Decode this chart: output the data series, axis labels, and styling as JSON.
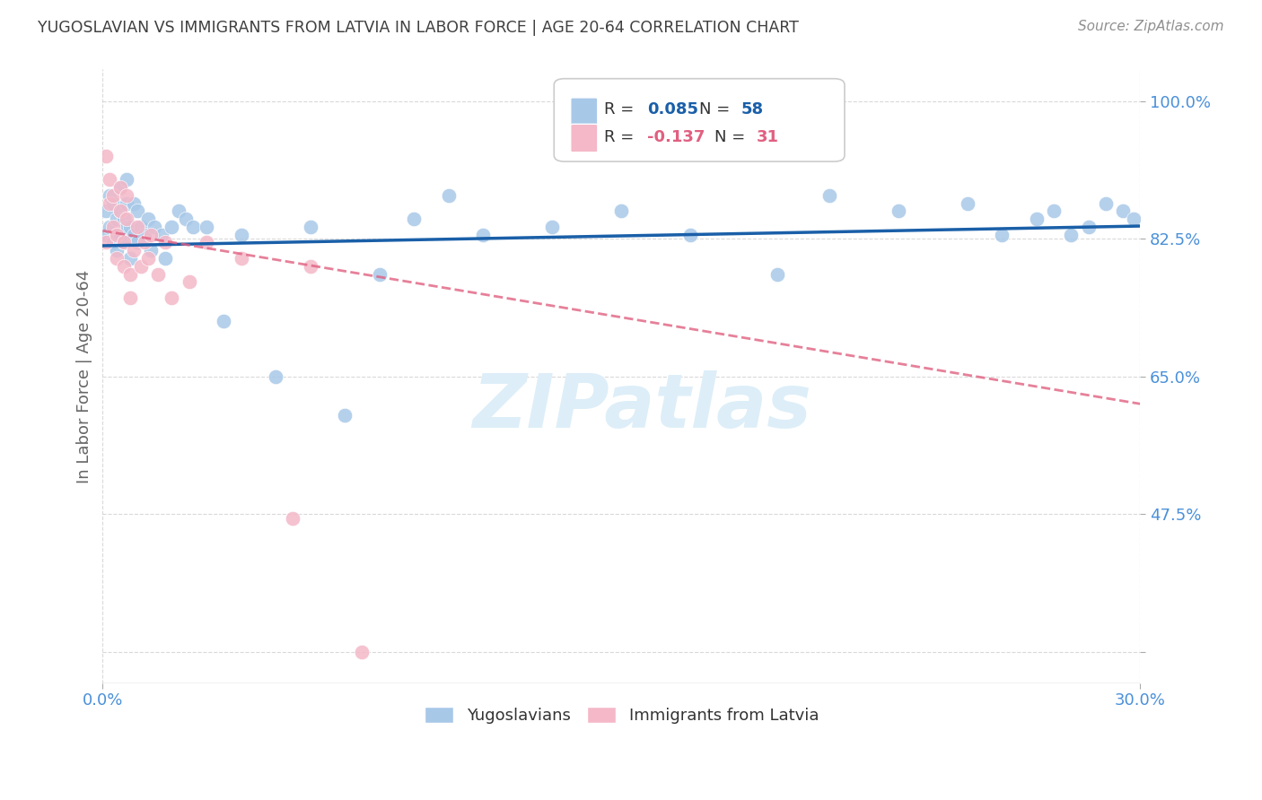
{
  "title": "YUGOSLAVIAN VS IMMIGRANTS FROM LATVIA IN LABOR FORCE | AGE 20-64 CORRELATION CHART",
  "source": "Source: ZipAtlas.com",
  "ylabel": "In Labor Force | Age 20-64",
  "xmin": 0.0,
  "xmax": 0.3,
  "ymin": 0.26,
  "ymax": 1.04,
  "ytick_vals": [
    0.3,
    0.475,
    0.65,
    0.825,
    1.0
  ],
  "ytick_labels": [
    "",
    "47.5%",
    "65.0%",
    "82.5%",
    "100.0%"
  ],
  "xtick_vals": [
    0.0,
    0.3
  ],
  "xtick_labels": [
    "0.0%",
    "30.0%"
  ],
  "legend_R1": "0.085",
  "legend_N1": "58",
  "legend_R2": "-0.137",
  "legend_N2": "31",
  "blue_fill": "#a8c8e8",
  "pink_fill": "#f4b8c8",
  "blue_line_color": "#1a5fa8",
  "pink_line_color": "#e06080",
  "axis_label_color": "#4a90d9",
  "grid_color": "#d0d0d0",
  "title_color": "#404040",
  "source_color": "#909090",
  "watermark_color": "#ddeef8",
  "blue_scatter_x": [
    0.001,
    0.001,
    0.002,
    0.002,
    0.003,
    0.003,
    0.004,
    0.004,
    0.005,
    0.005,
    0.005,
    0.006,
    0.006,
    0.007,
    0.007,
    0.007,
    0.008,
    0.008,
    0.009,
    0.009,
    0.01,
    0.01,
    0.011,
    0.012,
    0.013,
    0.014,
    0.015,
    0.017,
    0.018,
    0.02,
    0.022,
    0.024,
    0.026,
    0.03,
    0.035,
    0.04,
    0.05,
    0.06,
    0.07,
    0.08,
    0.09,
    0.1,
    0.11,
    0.13,
    0.15,
    0.17,
    0.195,
    0.21,
    0.23,
    0.25,
    0.26,
    0.27,
    0.275,
    0.28,
    0.285,
    0.29,
    0.295,
    0.298
  ],
  "blue_scatter_y": [
    0.83,
    0.86,
    0.84,
    0.88,
    0.82,
    0.87,
    0.81,
    0.85,
    0.83,
    0.86,
    0.89,
    0.82,
    0.85,
    0.84,
    0.87,
    0.9,
    0.8,
    0.84,
    0.83,
    0.87,
    0.82,
    0.86,
    0.84,
    0.83,
    0.85,
    0.81,
    0.84,
    0.83,
    0.8,
    0.84,
    0.86,
    0.85,
    0.84,
    0.84,
    0.72,
    0.83,
    0.65,
    0.84,
    0.6,
    0.78,
    0.85,
    0.88,
    0.83,
    0.84,
    0.86,
    0.83,
    0.78,
    0.88,
    0.86,
    0.87,
    0.83,
    0.85,
    0.86,
    0.83,
    0.84,
    0.87,
    0.86,
    0.85
  ],
  "pink_scatter_x": [
    0.001,
    0.001,
    0.002,
    0.002,
    0.003,
    0.003,
    0.004,
    0.004,
    0.005,
    0.005,
    0.006,
    0.006,
    0.007,
    0.007,
    0.008,
    0.008,
    0.009,
    0.01,
    0.011,
    0.012,
    0.013,
    0.014,
    0.016,
    0.018,
    0.02,
    0.025,
    0.03,
    0.04,
    0.055,
    0.06,
    0.075
  ],
  "pink_scatter_y": [
    0.82,
    0.93,
    0.87,
    0.9,
    0.84,
    0.88,
    0.8,
    0.83,
    0.86,
    0.89,
    0.79,
    0.82,
    0.85,
    0.88,
    0.75,
    0.78,
    0.81,
    0.84,
    0.79,
    0.82,
    0.8,
    0.83,
    0.78,
    0.82,
    0.75,
    0.77,
    0.82,
    0.8,
    0.47,
    0.79,
    0.3
  ],
  "blue_trend": [
    0.0,
    0.3,
    0.816,
    0.841
  ],
  "pink_trend": [
    0.0,
    0.3,
    0.835,
    0.615
  ]
}
